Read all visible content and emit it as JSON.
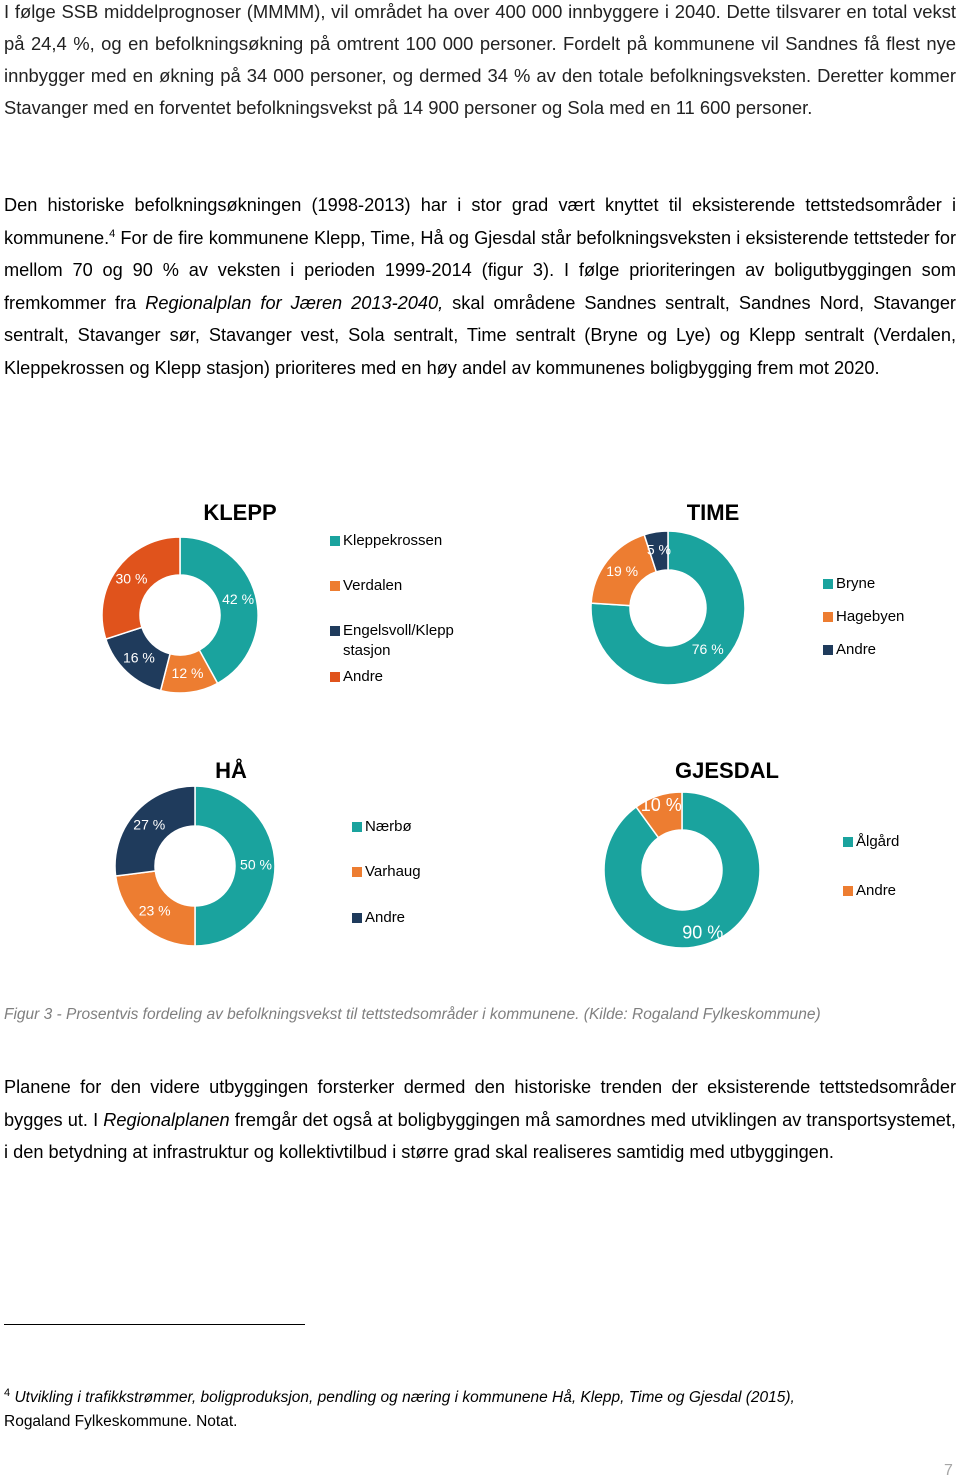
{
  "paragraphs": [
    [
      "I følge SSB middelprognoser (MMMM), vil området ha over 400 000 innbyggere i 2040. Dette tilsvarer en total vekst på 24,4 %, og en befolkningsøkning på omtrent 100 000 personer. Fordelt på kommunene vil Sandnes få flest nye innbygger med en økning på 34 000 personer, og dermed 34 % av den totale befolkningsveksten. Deretter kommer Stavanger med en forventet befolkningsvekst på 14 900 personer og Sola med en 11 600 personer."
    ],
    [
      "Den historiske befolkningsøkningen (1998-2013) har i stor grad vært knyttet til eksisterende tettstedsområder i kommunene.",
      "4",
      " For de fire kommunene Klepp, Time, Hå og Gjesdal står befolkningsveksten i eksisterende tettsteder for mellom 70 og 90 % av veksten i perioden 1999-2014 (figur 3). I følge prioriteringen av boligutbyggingen som fremkommer fra ",
      "Regionalplan for Jæren 2013-2040,",
      " skal områdene Sandnes sentralt, Sandnes Nord, Stavanger sentralt, Stavanger sør, Stavanger vest, Sola sentralt, Time sentralt (Bryne og Lye) og Klepp sentralt (Verdalen, Kleppekrossen og Klepp stasjon) prioriteres med en høy andel av kommunenes boligbygging frem mot 2020."
    ],
    [
      "Planene for den videre utbyggingen forsterker dermed den historiske trenden der eksisterende tettstedsområder bygges ut. I ",
      "Regionalplanen",
      " fremgår det også at boligbyggingen må samordnes med utviklingen av transportsystemet, i den betydning at infrastruktur og kollektivtilbud i større grad skal realiseres samtidig med utbyggingen."
    ]
  ],
  "chart_data": [
    {
      "type": "donut",
      "title": "KLEPP",
      "categories": [
        "Kleppekrossen",
        "Verdalen",
        "Engelsvoll/Klepp stasjon",
        "Andre"
      ],
      "values": [
        42,
        12,
        16,
        30
      ],
      "value_labels": [
        "42 %",
        "12 %",
        "16 %",
        "30 %"
      ],
      "colors": [
        "#1aa39e",
        "#ed7d31",
        "#1f3b5c",
        "#e0531c"
      ]
    },
    {
      "type": "donut",
      "title": "TIME",
      "categories": [
        "Bryne",
        "Hagebyen",
        "Andre"
      ],
      "values": [
        76,
        19,
        5
      ],
      "value_labels": [
        "76 %",
        "19 %",
        "5 %"
      ],
      "colors": [
        "#1aa39e",
        "#ed7d31",
        "#1f3b5c"
      ]
    },
    {
      "type": "donut",
      "title": "HÅ",
      "categories": [
        "Nærbø",
        "Varhaug",
        "Andre"
      ],
      "values": [
        50,
        23,
        27
      ],
      "value_labels": [
        "50 %",
        "23 %",
        "27 %"
      ],
      "colors": [
        "#1aa39e",
        "#ed7d31",
        "#1f3b5c"
      ]
    },
    {
      "type": "donut",
      "title": "GJESDAL",
      "categories": [
        "Ålgård",
        "Andre"
      ],
      "values": [
        90,
        10
      ],
      "value_labels": [
        "90 %",
        "10 %"
      ],
      "colors": [
        "#1aa39e",
        "#ed7d31"
      ]
    }
  ],
  "caption": "Figur 3 - Prosentvis fordeling av befolkningsvekst til tettstedsområder i kommunene. (Kilde: Rogaland Fylkeskommune)",
  "footnote": {
    "number": "4",
    "text": "Utvikling i trafikkstrømmer, boligproduksjon, pendling og næring i kommunene Hå, Klepp, Time og Gjesdal (2015),",
    "source": "Rogaland Fylkeskommune. Notat."
  },
  "page_number": "7"
}
